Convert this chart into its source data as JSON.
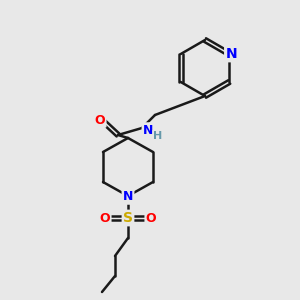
{
  "bg_color": "#e8e8e8",
  "bond_color": "#1a1a1a",
  "bond_lw": 1.8,
  "atom_colors": {
    "N": "#0000ff",
    "O": "#ff0000",
    "S": "#ccaa00",
    "H": "#6699aa",
    "C": "#1a1a1a"
  },
  "font_size": 9,
  "font_size_small": 8
}
